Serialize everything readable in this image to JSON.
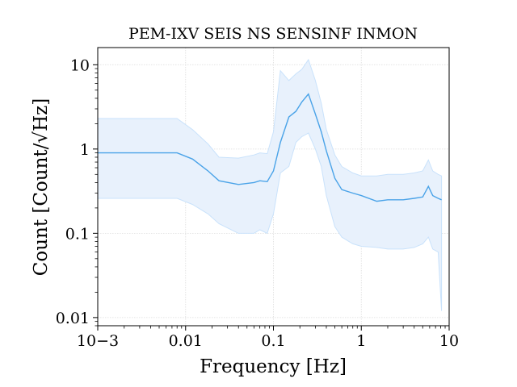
{
  "chart_data": {
    "type": "area",
    "title": "PEM-IXV SEIS NS SENSINF INMON",
    "xlabel": "Frequency [Hz]",
    "ylabel": "Count [Count/√Hz]",
    "xscale": "log",
    "yscale": "log",
    "xlim": [
      0.001,
      10
    ],
    "ylim": [
      0.008,
      16
    ],
    "grid": true,
    "x_ticks": [
      {
        "value": 0.001,
        "label": "10−3"
      },
      {
        "value": 0.01,
        "label": "0.01"
      },
      {
        "value": 0.1,
        "label": "0.1"
      },
      {
        "value": 1,
        "label": "1"
      },
      {
        "value": 10,
        "label": "10"
      }
    ],
    "y_ticks": [
      {
        "value": 0.01,
        "label": "0.01"
      },
      {
        "value": 0.1,
        "label": "0.1"
      },
      {
        "value": 1,
        "label": "1"
      },
      {
        "value": 10,
        "label": "10"
      }
    ],
    "colors": {
      "median": "#4aa3e8",
      "band_fill": "#e8f1fc",
      "band_edge": "#c9e2fb"
    },
    "x": [
      0.001,
      0.008,
      0.012,
      0.018,
      0.024,
      0.04,
      0.06,
      0.07,
      0.085,
      0.1,
      0.12,
      0.15,
      0.18,
      0.21,
      0.25,
      0.3,
      0.35,
      0.4,
      0.5,
      0.6,
      0.8,
      1.0,
      1.5,
      2.0,
      3.0,
      4.0,
      5.0,
      5.8,
      6.5,
      7.5,
      8.2
    ],
    "median": [
      0.9,
      0.9,
      0.76,
      0.55,
      0.42,
      0.38,
      0.4,
      0.42,
      0.41,
      0.55,
      1.2,
      2.4,
      2.8,
      3.6,
      4.5,
      2.6,
      1.6,
      0.95,
      0.45,
      0.33,
      0.3,
      0.28,
      0.24,
      0.25,
      0.25,
      0.26,
      0.27,
      0.36,
      0.28,
      0.26,
      0.25
    ],
    "upper": [
      2.3,
      2.3,
      1.7,
      1.15,
      0.8,
      0.78,
      0.85,
      0.9,
      0.88,
      1.6,
      8.5,
      6.5,
      7.8,
      8.8,
      11.5,
      6.5,
      3.5,
      1.7,
      0.85,
      0.62,
      0.52,
      0.48,
      0.48,
      0.5,
      0.5,
      0.52,
      0.55,
      0.74,
      0.55,
      0.5,
      0.48
    ],
    "lower": [
      0.26,
      0.26,
      0.22,
      0.17,
      0.13,
      0.1,
      0.1,
      0.11,
      0.1,
      0.17,
      0.52,
      0.62,
      1.2,
      1.4,
      1.55,
      1.0,
      0.62,
      0.28,
      0.12,
      0.09,
      0.075,
      0.07,
      0.068,
      0.065,
      0.065,
      0.068,
      0.075,
      0.09,
      0.065,
      0.06,
      0.012
    ]
  }
}
